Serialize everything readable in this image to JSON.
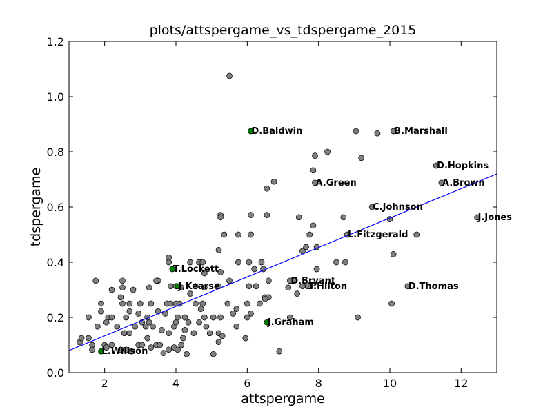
{
  "chart_data": {
    "type": "scatter",
    "title": "plots/attspergame_vs_tdspergame_2015",
    "xlabel": "attspergame",
    "ylabel": "tdspergame",
    "xlim": [
      1,
      13
    ],
    "ylim": [
      0.0,
      1.2
    ],
    "xticks": [
      2,
      4,
      6,
      8,
      10,
      12
    ],
    "yticks": [
      0.0,
      0.2,
      0.4,
      0.6,
      0.8,
      1.0,
      1.2
    ],
    "xtick_labels": [
      "2",
      "4",
      "6",
      "8",
      "10",
      "12"
    ],
    "ytick_labels": [
      "0.0",
      "0.2",
      "0.4",
      "0.6",
      "0.8",
      "1.0",
      "1.2"
    ],
    "grid": false,
    "colors": {
      "point_default": "#808080",
      "point_highlight": "#008000",
      "point_edge": "#000000",
      "regression_line": "#0000ff"
    },
    "regression_line": {
      "x": [
        1,
        13
      ],
      "y": [
        0.08,
        0.72
      ]
    },
    "labeled_points": [
      {
        "label": "D.Baldwin",
        "x": 6.1,
        "y": 0.875,
        "group": "highlight"
      },
      {
        "label": "T.Lockett",
        "x": 3.9,
        "y": 0.375,
        "group": "highlight"
      },
      {
        "label": "J.Kearse",
        "x": 4.05,
        "y": 0.313,
        "group": "highlight"
      },
      {
        "label": "J.Graham",
        "x": 6.55,
        "y": 0.182,
        "group": "highlight"
      },
      {
        "label": "L.Willson",
        "x": 1.9,
        "y": 0.077,
        "group": "highlight"
      },
      {
        "label": "B.Marshall",
        "x": 10.1,
        "y": 0.875,
        "group": "default"
      },
      {
        "label": "D.Hopkins",
        "x": 11.3,
        "y": 0.75,
        "group": "default"
      },
      {
        "label": "A.Brown",
        "x": 11.45,
        "y": 0.688,
        "group": "default"
      },
      {
        "label": "A.Green",
        "x": 7.9,
        "y": 0.688,
        "group": "default"
      },
      {
        "label": "C.Johnson",
        "x": 9.5,
        "y": 0.6,
        "group": "default"
      },
      {
        "label": "J.Jones",
        "x": 12.45,
        "y": 0.563,
        "group": "default"
      },
      {
        "label": "L.Fitzgerald",
        "x": 8.8,
        "y": 0.5,
        "group": "default"
      },
      {
        "label": "D.Bryant",
        "x": 7.2,
        "y": 0.333,
        "group": "default"
      },
      {
        "label": "T.Hilton",
        "x": 7.7,
        "y": 0.313,
        "group": "default"
      },
      {
        "label": "D.Thomas",
        "x": 10.5,
        "y": 0.313,
        "group": "default"
      }
    ],
    "points": [
      [
        5.5,
        1.075
      ],
      [
        9.05,
        0.875
      ],
      [
        9.65,
        0.867
      ],
      [
        7.9,
        0.786
      ],
      [
        8.25,
        0.8
      ],
      [
        9.2,
        0.778
      ],
      [
        7.85,
        0.733
      ],
      [
        6.75,
        0.692
      ],
      [
        6.55,
        0.667
      ],
      [
        10.0,
        0.556
      ],
      [
        8.7,
        0.563
      ],
      [
        7.45,
        0.563
      ],
      [
        5.25,
        0.571
      ],
      [
        5.25,
        0.563
      ],
      [
        6.1,
        0.571
      ],
      [
        6.55,
        0.571
      ],
      [
        7.85,
        0.533
      ],
      [
        7.75,
        0.5
      ],
      [
        5.35,
        0.5
      ],
      [
        5.75,
        0.5
      ],
      [
        6.1,
        0.5
      ],
      [
        10.75,
        0.5
      ],
      [
        7.95,
        0.455
      ],
      [
        7.65,
        0.455
      ],
      [
        7.55,
        0.44
      ],
      [
        5.2,
        0.444
      ],
      [
        10.1,
        0.429
      ],
      [
        3.8,
        0.417
      ],
      [
        3.8,
        0.4
      ],
      [
        4.4,
        0.4
      ],
      [
        4.65,
        0.4
      ],
      [
        4.75,
        0.4
      ],
      [
        5.75,
        0.4
      ],
      [
        6.05,
        0.4
      ],
      [
        6.4,
        0.4
      ],
      [
        8.5,
        0.4
      ],
      [
        8.75,
        0.4
      ],
      [
        7.95,
        0.375
      ],
      [
        6.2,
        0.375
      ],
      [
        6.45,
        0.375
      ],
      [
        4.8,
        0.36
      ],
      [
        5.25,
        0.364
      ],
      [
        1.75,
        0.333
      ],
      [
        2.5,
        0.333
      ],
      [
        3.5,
        0.333
      ],
      [
        3.45,
        0.333
      ],
      [
        5.5,
        0.333
      ],
      [
        6.6,
        0.333
      ],
      [
        7.3,
        0.333
      ],
      [
        2.5,
        0.308
      ],
      [
        2.8,
        0.3
      ],
      [
        3.25,
        0.308
      ],
      [
        3.85,
        0.313
      ],
      [
        4.0,
        0.313
      ],
      [
        4.15,
        0.308
      ],
      [
        4.55,
        0.313
      ],
      [
        4.8,
        0.308
      ],
      [
        5.2,
        0.313
      ],
      [
        6.05,
        0.313
      ],
      [
        6.25,
        0.313
      ],
      [
        6.25,
        0.313
      ],
      [
        7.15,
        0.308
      ],
      [
        7.55,
        0.313
      ],
      [
        7.75,
        0.313
      ],
      [
        7.7,
        0.313
      ],
      [
        2.2,
        0.3
      ],
      [
        2.45,
        0.273
      ],
      [
        4.4,
        0.286
      ],
      [
        6.5,
        0.273
      ],
      [
        6.6,
        0.273
      ],
      [
        7.4,
        0.286
      ],
      [
        6.5,
        0.267
      ],
      [
        1.9,
        0.25
      ],
      [
        2.5,
        0.25
      ],
      [
        2.7,
        0.25
      ],
      [
        3.0,
        0.25
      ],
      [
        3.3,
        0.25
      ],
      [
        3.75,
        0.25
      ],
      [
        3.85,
        0.25
      ],
      [
        4.0,
        0.25
      ],
      [
        4.1,
        0.25
      ],
      [
        4.55,
        0.25
      ],
      [
        4.75,
        0.25
      ],
      [
        5.45,
        0.25
      ],
      [
        6.0,
        0.25
      ],
      [
        6.35,
        0.25
      ],
      [
        10.05,
        0.25
      ],
      [
        1.9,
        0.222
      ],
      [
        2.1,
        0.2
      ],
      [
        2.2,
        0.2
      ],
      [
        2.6,
        0.2
      ],
      [
        2.7,
        0.222
      ],
      [
        2.95,
        0.214
      ],
      [
        3.2,
        0.2
      ],
      [
        3.5,
        0.222
      ],
      [
        3.7,
        0.214
      ],
      [
        4.05,
        0.2
      ],
      [
        4.25,
        0.2
      ],
      [
        4.7,
        0.231
      ],
      [
        4.8,
        0.2
      ],
      [
        5.05,
        0.2
      ],
      [
        5.25,
        0.2
      ],
      [
        5.6,
        0.214
      ],
      [
        5.7,
        0.231
      ],
      [
        6.0,
        0.2
      ],
      [
        6.1,
        0.214
      ],
      [
        1.55,
        0.2
      ],
      [
        9.1,
        0.2
      ],
      [
        1.8,
        0.167
      ],
      [
        2.05,
        0.182
      ],
      [
        2.35,
        0.167
      ],
      [
        2.55,
        0.143
      ],
      [
        2.7,
        0.143
      ],
      [
        2.85,
        0.167
      ],
      [
        3.05,
        0.182
      ],
      [
        3.15,
        0.167
      ],
      [
        3.25,
        0.182
      ],
      [
        3.35,
        0.167
      ],
      [
        3.6,
        0.154
      ],
      [
        3.8,
        0.143
      ],
      [
        3.95,
        0.167
      ],
      [
        4.0,
        0.182
      ],
      [
        4.25,
        0.154
      ],
      [
        4.35,
        0.182
      ],
      [
        4.5,
        0.143
      ],
      [
        4.65,
        0.182
      ],
      [
        4.85,
        0.167
      ],
      [
        4.95,
        0.143
      ],
      [
        5.2,
        0.143
      ],
      [
        5.3,
        0.133
      ],
      [
        5.7,
        0.167
      ],
      [
        5.95,
        0.125
      ],
      [
        7.2,
        0.2
      ],
      [
        1.3,
        0.11
      ],
      [
        1.35,
        0.125
      ],
      [
        1.55,
        0.125
      ],
      [
        1.65,
        0.1
      ],
      [
        2.0,
        0.1
      ],
      [
        2.05,
        0.091
      ],
      [
        2.2,
        0.1
      ],
      [
        2.45,
        0.083
      ],
      [
        2.6,
        0.083
      ],
      [
        2.75,
        0.077
      ],
      [
        2.95,
        0.1
      ],
      [
        3.05,
        0.1
      ],
      [
        3.2,
        0.125
      ],
      [
        3.3,
        0.091
      ],
      [
        3.45,
        0.1
      ],
      [
        3.55,
        0.1
      ],
      [
        3.65,
        0.071
      ],
      [
        3.8,
        0.083
      ],
      [
        3.95,
        0.091
      ],
      [
        4.05,
        0.083
      ],
      [
        4.15,
        0.1
      ],
      [
        4.3,
        0.067
      ],
      [
        5.05,
        0.067
      ],
      [
        5.2,
        0.111
      ],
      [
        6.9,
        0.077
      ],
      [
        4.2,
        0.125
      ],
      [
        1.65,
        0.083
      ]
    ]
  }
}
